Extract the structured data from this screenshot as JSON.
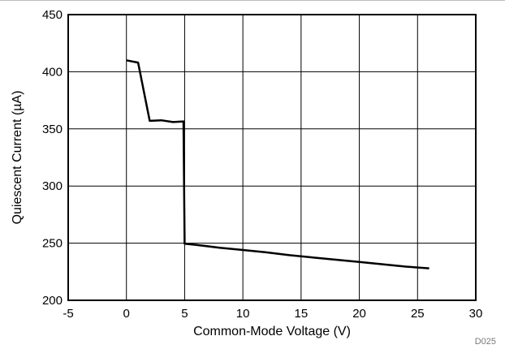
{
  "chart_data": {
    "type": "line",
    "xlabel": "Common-Mode Voltage (V)",
    "ylabel": "Quiescent Current (µA)",
    "xlim": [
      -5,
      30
    ],
    "ylim": [
      200,
      450
    ],
    "xticks": [
      -5,
      0,
      5,
      10,
      15,
      20,
      25,
      30
    ],
    "yticks": [
      200,
      250,
      300,
      350,
      400,
      450
    ],
    "grid": true,
    "series": [
      {
        "color": "#000000",
        "points": [
          [
            0,
            410
          ],
          [
            1,
            408
          ],
          [
            2,
            357
          ],
          [
            3,
            357.5
          ],
          [
            4,
            356
          ],
          [
            4.9,
            356.5
          ],
          [
            5,
            249.5
          ],
          [
            6,
            248.5
          ],
          [
            8,
            246
          ],
          [
            10,
            244
          ],
          [
            12,
            242
          ],
          [
            14,
            239.5
          ],
          [
            16,
            237.5
          ],
          [
            18,
            235.5
          ],
          [
            20,
            233.5
          ],
          [
            22,
            231.5
          ],
          [
            24,
            229.5
          ],
          [
            26,
            228
          ]
        ]
      }
    ],
    "annotation": "D025"
  }
}
